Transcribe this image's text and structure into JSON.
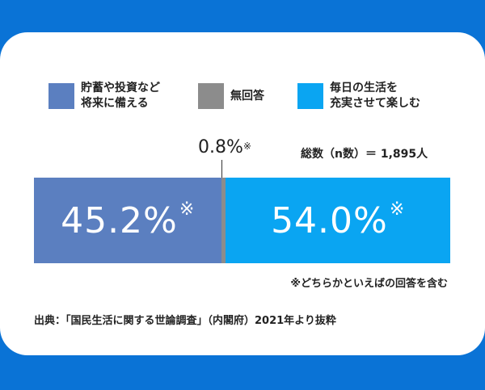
{
  "legend": [
    {
      "label": "貯蓄や投資など\n将来に備える",
      "color": "#5b7fc0"
    },
    {
      "label": "無回答",
      "color": "#8c8c8c"
    },
    {
      "label": "毎日の生活を\n充実させて楽しむ",
      "color": "#0aa5f2"
    }
  ],
  "n_label": "総数（n数）＝ 1,895人",
  "note_mark": "※",
  "note": "※どちらかといえばの回答を含む",
  "source": "出典：「国民生活に関する世論調査」（内閣府）2021年より抜粋",
  "chart_data": {
    "type": "bar",
    "orientation": "horizontal-stacked",
    "categories": [
      "貯蓄や投資など将来に備える",
      "無回答",
      "毎日の生活を充実させて楽しむ"
    ],
    "values": [
      45.2,
      0.8,
      54.0
    ],
    "value_labels": [
      "45.2%",
      "0.8%",
      "54.0%"
    ],
    "colors": [
      "#5b7fc0",
      "#8c8c8c",
      "#0aa5f2"
    ],
    "xlim": [
      0,
      100
    ]
  }
}
